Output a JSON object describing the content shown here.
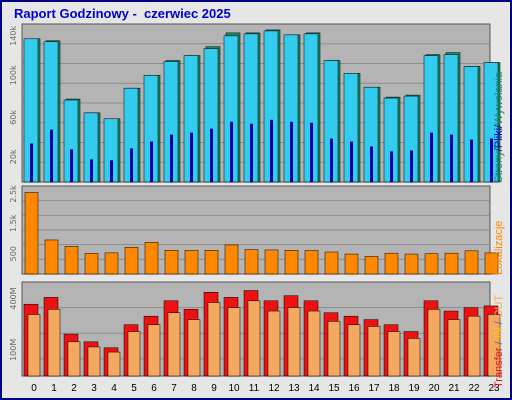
{
  "title": "Raport Godzinowy -  czerwiec 2025",
  "colors": {
    "plot_bg": "#b4b4b4",
    "grid": "#8c8c8c",
    "pages": "#1a8a6a",
    "files": "#33ccee",
    "hits": "#0000aa",
    "visits": "#ff8800",
    "transfer_in": "#ee1111",
    "transfer_out": "#f4a860",
    "side_pages": "#1a8a6a",
    "side_files": "#33bbdd",
    "side_hits": "#0000cc",
    "side_visits": "#ff8800",
    "side_transfer": "#ee1111",
    "side_in": "#ffcc00",
    "side_out": "#f4a860"
  },
  "side_labels": {
    "panel1": {
      "pages": "Strony",
      "sep1": "/",
      "files": "Pliki",
      "sep2": "/",
      "hits": "Wywołania"
    },
    "panel2": {
      "visits": "Lokalizacje"
    },
    "panel3": {
      "transfer": "Transfer",
      "sep1": " / ",
      "in": "IN",
      "sep2": " / ",
      "out": "OUT"
    }
  },
  "chart_data": [
    {
      "type": "bar",
      "panel": "top",
      "categories": [
        "0",
        "1",
        "2",
        "3",
        "4",
        "5",
        "6",
        "7",
        "8",
        "9",
        "10",
        "11",
        "12",
        "13",
        "14",
        "15",
        "16",
        "17",
        "18",
        "19",
        "20",
        "21",
        "22",
        "23"
      ],
      "y_ticks": [
        {
          "value": 20000,
          "label": "20k"
        },
        {
          "value": 60000,
          "label": "60k"
        },
        {
          "value": 100000,
          "label": "100k"
        },
        {
          "value": 140000,
          "label": "140k"
        }
      ],
      "ylim": [
        0,
        160000
      ],
      "series": [
        {
          "name": "Strony",
          "values": [
            145000,
            143000,
            84000,
            70000,
            64000,
            95000,
            108000,
            123000,
            128000,
            137000,
            151000,
            151000,
            154000,
            149000,
            151000,
            123000,
            110000,
            96000,
            86000,
            88000,
            129000,
            131000,
            117000,
            121000
          ]
        },
        {
          "name": "Pliki",
          "values": [
            145000,
            142000,
            83000,
            70000,
            64000,
            95000,
            108000,
            122000,
            128000,
            135000,
            148000,
            150000,
            153000,
            149000,
            150000,
            123000,
            110000,
            96000,
            85000,
            87000,
            128000,
            129000,
            117000,
            121000
          ]
        },
        {
          "name": "Wywołania",
          "values": [
            39000,
            53000,
            33000,
            23000,
            22000,
            34000,
            41000,
            48000,
            50000,
            54000,
            61000,
            59000,
            63000,
            61000,
            60000,
            44000,
            41000,
            36000,
            31000,
            32000,
            50000,
            48000,
            43000,
            44000
          ]
        }
      ]
    },
    {
      "type": "bar",
      "panel": "middle",
      "categories": [
        "0",
        "1",
        "2",
        "3",
        "4",
        "5",
        "6",
        "7",
        "8",
        "9",
        "10",
        "11",
        "12",
        "13",
        "14",
        "15",
        "16",
        "17",
        "18",
        "19",
        "20",
        "21",
        "22",
        "23"
      ],
      "y_ticks": [
        {
          "value": 500,
          "label": "500"
        },
        {
          "value": 1500,
          "label": "1.5k"
        },
        {
          "value": 2500,
          "label": "2.5k"
        }
      ],
      "ylim": [
        0,
        3000
      ],
      "series": [
        {
          "name": "Lokalizacje",
          "values": [
            2780,
            1160,
            940,
            700,
            720,
            910,
            1080,
            810,
            810,
            810,
            990,
            830,
            820,
            810,
            800,
            750,
            680,
            600,
            710,
            680,
            690,
            710,
            790,
            720
          ]
        }
      ]
    },
    {
      "type": "bar",
      "panel": "bottom",
      "categories": [
        "0",
        "1",
        "2",
        "3",
        "4",
        "5",
        "6",
        "7",
        "8",
        "9",
        "10",
        "11",
        "12",
        "13",
        "14",
        "15",
        "16",
        "17",
        "18",
        "19",
        "20",
        "21",
        "22",
        "23"
      ],
      "y_ticks": [
        {
          "value": 100,
          "label": "100M"
        },
        {
          "value": 400,
          "label": "400M"
        }
      ],
      "ylim": [
        0,
        550
      ],
      "series": [
        {
          "name": "IN",
          "values": [
            420,
            460,
            245,
            200,
            165,
            300,
            350,
            440,
            390,
            490,
            460,
            500,
            440,
            470,
            440,
            370,
            350,
            330,
            300,
            260,
            440,
            380,
            400,
            410
          ]
        },
        {
          "name": "OUT",
          "values": [
            360,
            390,
            200,
            170,
            140,
            260,
            300,
            370,
            330,
            430,
            400,
            440,
            380,
            400,
            380,
            320,
            300,
            290,
            260,
            220,
            390,
            330,
            350,
            360
          ]
        }
      ]
    }
  ]
}
